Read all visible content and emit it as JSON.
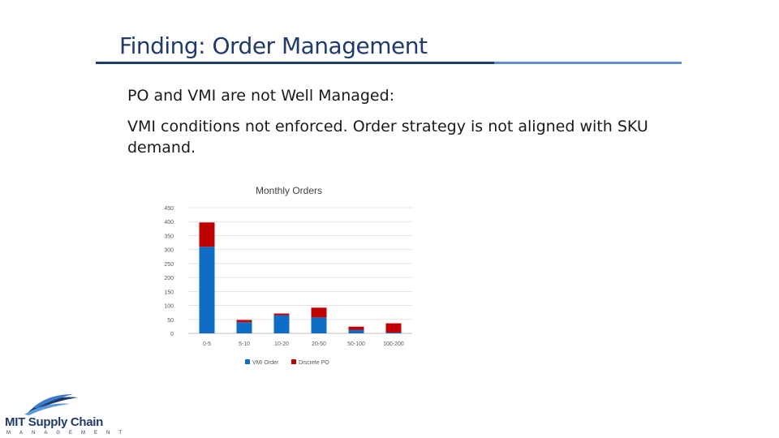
{
  "slide": {
    "title": "Finding: Order Management",
    "subhead": "PO and VMI are not Well Managed:",
    "body": "VMI conditions not enforced. Order strategy is not aligned with SKU demand."
  },
  "logo": {
    "name": "MIT Supply Chain",
    "subtitle": "MANAGEMENT",
    "icon": "waves-logo-icon"
  },
  "colors": {
    "title": "#1f3a6b",
    "vmi": "#0e6dc4",
    "po": "#c00000"
  },
  "chart_data": {
    "type": "bar",
    "stacked": true,
    "title": "Monthly Orders",
    "categories": [
      "0-5",
      "5-10",
      "10-20",
      "20-50",
      "50-100",
      "100-200"
    ],
    "series": [
      {
        "name": "VMI Order",
        "values": [
          310,
          40,
          65,
          57,
          12,
          3
        ]
      },
      {
        "name": "Discrete PO",
        "values": [
          87,
          8,
          6,
          35,
          12,
          33
        ]
      }
    ],
    "ylim": [
      0,
      450
    ],
    "yticks": [
      0,
      50,
      100,
      150,
      200,
      250,
      300,
      350,
      400,
      450
    ],
    "grid": true,
    "legend": "bottom"
  }
}
